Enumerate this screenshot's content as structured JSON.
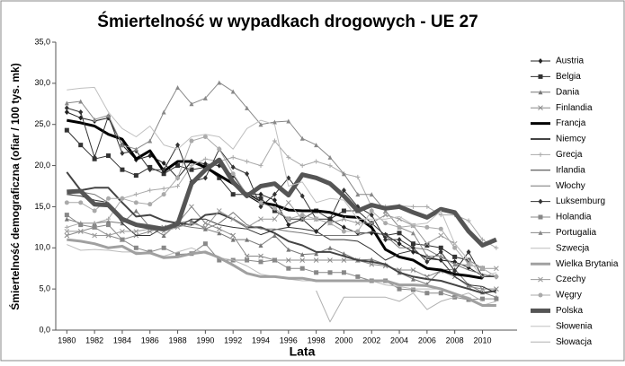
{
  "chart_data": {
    "type": "line",
    "title": "Śmiertelność  w wypadkach drogowych - UE 27",
    "x_label": "Lata",
    "y_label": "Śmiertelność demograficzna  (ofiar / 100 tys. mk)",
    "xlim": [
      1979.2,
      2012.5
    ],
    "xticks": [
      1980,
      1982,
      1984,
      1986,
      1988,
      1990,
      1992,
      1994,
      1996,
      1998,
      2000,
      2002,
      2004,
      2006,
      2008,
      2010
    ],
    "ylim": [
      0,
      35
    ],
    "yticks": [
      {
        "value": 0,
        "label": "0,0"
      },
      {
        "value": 5,
        "label": "5,0"
      },
      {
        "value": 10,
        "label": "10,0"
      },
      {
        "value": 15,
        "label": "15,0"
      },
      {
        "value": 20,
        "label": "20,0"
      },
      {
        "value": 25,
        "label": "25,0"
      },
      {
        "value": 30,
        "label": "30,0"
      },
      {
        "value": 35,
        "label": "35,0"
      }
    ],
    "grid": false,
    "legend": "right",
    "x": [
      1980,
      1981,
      1982,
      1983,
      1984,
      1985,
      1986,
      1987,
      1988,
      1989,
      1990,
      1991,
      1992,
      1993,
      1994,
      1995,
      1996,
      1997,
      1998,
      1999,
      2000,
      2001,
      2002,
      2003,
      2004,
      2005,
      2006,
      2007,
      2008,
      2009,
      2010,
      2011
    ],
    "series": [
      {
        "name": "Austria",
        "color": "#222222",
        "marker": "diamond",
        "width": 1,
        "values": [
          26.5,
          25.8,
          25.4,
          25.8,
          22.5,
          20.7,
          21.2,
          20.3,
          18.5,
          20.5,
          20.2,
          20.0,
          18.8,
          16.5,
          16.5,
          15.8,
          12.8,
          13.5,
          12.0,
          13.5,
          12.5,
          11.8,
          11.8,
          11.6,
          10.5,
          9.5,
          8.9,
          8.5,
          8.3,
          7.6,
          6.6,
          6.5
        ]
      },
      {
        "name": "Belgia",
        "color": "#333333",
        "marker": "square",
        "width": 1,
        "values": [
          24.3,
          22.5,
          20.8,
          21.2,
          19.5,
          18.8,
          19.8,
          19.0,
          20.0,
          19.5,
          19.8,
          18.5,
          16.5,
          16.5,
          16.0,
          14.5,
          13.5,
          13.5,
          14.5,
          13.5,
          14.5,
          14.5,
          13.0,
          11.5,
          11.8,
          10.5,
          10.3,
          10.0,
          8.9,
          8.5,
          7.5,
          null
        ]
      },
      {
        "name": "Dania",
        "color": "#777777",
        "marker": "triangle",
        "width": 1,
        "values": [
          13.5,
          13.0,
          13.0,
          13.2,
          13.0,
          14.5,
          12.5,
          11.5,
          13.0,
          13.3,
          12.3,
          11.8,
          11.0,
          11.0,
          10.3,
          11.5,
          9.8,
          9.2,
          9.3,
          10.0,
          9.3,
          8.5,
          8.6,
          8.0,
          7.0,
          6.2,
          5.6,
          7.3,
          7.4,
          5.5,
          4.6,
          4.0
        ]
      },
      {
        "name": "Finlandia",
        "color": "#888888",
        "marker": "x",
        "width": 1,
        "values": [
          11.5,
          12.0,
          12.5,
          11.5,
          11.0,
          11.5,
          12.0,
          12.5,
          13.0,
          15.0,
          13.0,
          12.3,
          11.5,
          9.0,
          9.0,
          8.5,
          8.5,
          8.5,
          8.5,
          8.5,
          8.5,
          8.5,
          8.0,
          7.8,
          7.3,
          7.3,
          6.5,
          7.2,
          6.5,
          5.3,
          5.0,
          5.0
        ]
      },
      {
        "name": "Francja",
        "color": "#000000",
        "marker": "none",
        "width": 3,
        "values": [
          25.5,
          25.2,
          24.8,
          23.8,
          23.2,
          20.8,
          21.8,
          19.3,
          20.5,
          20.5,
          19.8,
          18.8,
          17.8,
          16.5,
          15.5,
          15.2,
          14.6,
          14.5,
          14.5,
          14.3,
          13.8,
          13.7,
          12.5,
          9.8,
          8.9,
          8.5,
          7.5,
          7.3,
          6.8,
          6.6,
          6.3,
          null
        ]
      },
      {
        "name": "Niemcy",
        "color": "#444444",
        "marker": "none",
        "width": 2,
        "values": [
          19.2,
          17.0,
          17.3,
          17.3,
          15.5,
          13.8,
          14.0,
          13.3,
          13.0,
          12.8,
          14.0,
          14.2,
          13.5,
          12.5,
          12.5,
          11.8,
          10.8,
          10.3,
          9.5,
          9.5,
          9.0,
          8.5,
          8.3,
          8.0,
          7.0,
          6.5,
          6.2,
          6.0,
          5.5,
          5.0,
          4.5,
          4.8
        ]
      },
      {
        "name": "Grecja",
        "color": "#aaaaaa",
        "marker": "plus",
        "width": 1,
        "values": [
          12.5,
          13.0,
          13.0,
          13.5,
          16.0,
          16.5,
          17.0,
          17.2,
          17.5,
          20.0,
          20.8,
          20.5,
          21.0,
          20.5,
          20.0,
          23.0,
          21.0,
          20.0,
          20.5,
          20.0,
          19.0,
          18.6,
          15.0,
          15.0,
          15.1,
          15.0,
          15.0,
          14.0,
          14.0,
          13.3,
          11.0,
          10.0
        ]
      },
      {
        "name": "Irlandia",
        "color": "#333333",
        "marker": "none",
        "width": 1,
        "values": [
          16.5,
          16.3,
          15.8,
          15.5,
          13.0,
          11.5,
          11.5,
          12.5,
          12.5,
          13.5,
          13.5,
          12.8,
          12.5,
          12.3,
          11.6,
          12.2,
          12.5,
          12.3,
          12.0,
          11.0,
          11.0,
          10.8,
          9.8,
          8.5,
          9.3,
          9.7,
          8.7,
          8.5,
          6.5,
          5.5,
          5.3,
          4.5
        ]
      },
      {
        "name": "Włochy",
        "color": "#777777",
        "marker": "none",
        "width": 1,
        "values": [
          16.5,
          16.8,
          16.5,
          15.5,
          13.5,
          13.0,
          12.8,
          12.5,
          12.8,
          12.5,
          12.3,
          13.0,
          14.3,
          12.8,
          12.3,
          12.3,
          12.0,
          11.8,
          11.5,
          11.5,
          11.5,
          11.5,
          12.0,
          11.5,
          10.0,
          10.0,
          9.8,
          8.9,
          8.0,
          7.3,
          6.8,
          6.5
        ]
      },
      {
        "name": "Luksemburg",
        "color": "#333333",
        "marker": "diamond",
        "width": 1,
        "values": [
          27.0,
          26.5,
          21.0,
          26.0,
          21.5,
          21.8,
          19.5,
          19.5,
          22.5,
          18.0,
          18.5,
          22.0,
          19.8,
          19.0,
          15.0,
          16.5,
          18.5,
          16.3,
          13.5,
          13.5,
          17.0,
          15.0,
          14.0,
          11.0,
          11.0,
          10.0,
          8.3,
          9.5,
          7.2,
          9.5,
          6.5,
          6.5
        ]
      },
      {
        "name": "Holandia",
        "color": "#888888",
        "marker": "square",
        "width": 1,
        "values": [
          14.0,
          12.8,
          12.5,
          12.8,
          11.0,
          10.0,
          9.5,
          10.0,
          9.2,
          9.3,
          10.5,
          8.5,
          8.5,
          8.5,
          8.3,
          8.5,
          7.5,
          7.5,
          7.0,
          7.0,
          7.0,
          6.5,
          6.0,
          6.0,
          5.0,
          4.9,
          4.5,
          4.5,
          4.0,
          3.7,
          3.8,
          3.8
        ]
      },
      {
        "name": "Portugalia",
        "color": "#888888",
        "marker": "triangle",
        "width": 1,
        "values": [
          27.6,
          27.8,
          25.6,
          26.1,
          22.5,
          22.0,
          23.0,
          26.5,
          29.5,
          27.5,
          28.2,
          30.1,
          29.0,
          27.0,
          25.0,
          25.3,
          25.4,
          23.3,
          22.5,
          21.0,
          19.0,
          16.5,
          16.5,
          14.5,
          12.5,
          11.8,
          9.0,
          9.0,
          8.0,
          7.9,
          7.6,
          null
        ]
      },
      {
        "name": "Szwecja",
        "color": "#bbbbbb",
        "marker": "none",
        "width": 1,
        "values": [
          10.4,
          9.7,
          9.8,
          9.7,
          9.5,
          9.5,
          9.3,
          9.0,
          9.5,
          10.0,
          9.3,
          8.8,
          8.5,
          7.8,
          6.8,
          6.5,
          6.2,
          6.0,
          6.0,
          6.0,
          6.0,
          6.0,
          6.0,
          5.5,
          5.3,
          5.0,
          5.0,
          5.0,
          4.5,
          4.0,
          3.0,
          3.5
        ]
      },
      {
        "name": "Wielka Brytania",
        "color": "#a0a0a0",
        "marker": "none",
        "width": 3,
        "values": [
          11.0,
          10.8,
          10.5,
          10.0,
          10.2,
          9.3,
          9.4,
          8.8,
          8.9,
          9.3,
          9.5,
          8.8,
          7.9,
          6.9,
          6.5,
          6.5,
          6.3,
          6.3,
          6.0,
          6.0,
          6.0,
          6.0,
          6.0,
          6.0,
          5.5,
          5.5,
          5.4,
          5.0,
          4.4,
          3.8,
          3.0,
          3.0
        ]
      },
      {
        "name": "Czechy",
        "color": "#999999",
        "marker": "x",
        "width": 1,
        "values": [
          12.0,
          12.0,
          11.5,
          11.5,
          12.0,
          12.0,
          12.3,
          12.0,
          12.5,
          13.0,
          12.5,
          14.5,
          13.5,
          12.5,
          13.5,
          13.5,
          15.5,
          13.5,
          13.5,
          13.0,
          13.5,
          13.0,
          13.0,
          14.0,
          13.5,
          12.7,
          10.5,
          11.5,
          10.5,
          8.5,
          7.5,
          7.5
        ]
      },
      {
        "name": "Węgry",
        "color": "#aaaaaa",
        "marker": "circle",
        "width": 1,
        "values": [
          15.5,
          15.5,
          14.5,
          16.0,
          16.0,
          15.5,
          15.3,
          16.5,
          18.5,
          23.0,
          23.5,
          22.0,
          19.0,
          16.5,
          15.5,
          14.8,
          13.5,
          14.0,
          13.5,
          13.0,
          12.0,
          12.0,
          14.5,
          13.0,
          12.5,
          12.7,
          12.5,
          12.3,
          10.0,
          8.0,
          7.5,
          6.5
        ]
      },
      {
        "name": "Polska",
        "color": "#555555",
        "marker": "none",
        "width": 5,
        "values": [
          16.8,
          16.9,
          15.3,
          15.2,
          13.5,
          12.8,
          12.5,
          12.3,
          12.9,
          17.8,
          19.5,
          20.7,
          18.0,
          16.3,
          17.5,
          17.8,
          16.4,
          18.9,
          18.5,
          17.8,
          16.3,
          14.5,
          15.2,
          14.8,
          15.0,
          14.3,
          13.7,
          14.7,
          14.3,
          12.0,
          10.3,
          11.0
        ]
      },
      {
        "name": "Słowenia",
        "color": "#c0c0c0",
        "marker": "none",
        "width": 1,
        "values": [
          29.2,
          29.4,
          29.5,
          26.5,
          24.5,
          23.5,
          24.8,
          22.5,
          22.0,
          23.5,
          23.8,
          23.5,
          22.0,
          24.5,
          25.5,
          25.0,
          17.5,
          18.0,
          15.5,
          16.0,
          15.8,
          13.5,
          13.5,
          13.5,
          13.8,
          12.8,
          13.0,
          14.5,
          10.5,
          8.5,
          6.5,
          7.0
        ]
      },
      {
        "name": "Słowacja",
        "color": "#b0b0b0",
        "marker": "none",
        "width": 1,
        "values": [
          null,
          null,
          null,
          null,
          null,
          null,
          null,
          null,
          null,
          null,
          null,
          null,
          null,
          null,
          null,
          null,
          null,
          null,
          4.8,
          1.0,
          4.0,
          4.0,
          4.0,
          4.0,
          3.5,
          4.5,
          2.5,
          3.5,
          4.0,
          4.5,
          3.5,
          null
        ]
      }
    ]
  }
}
